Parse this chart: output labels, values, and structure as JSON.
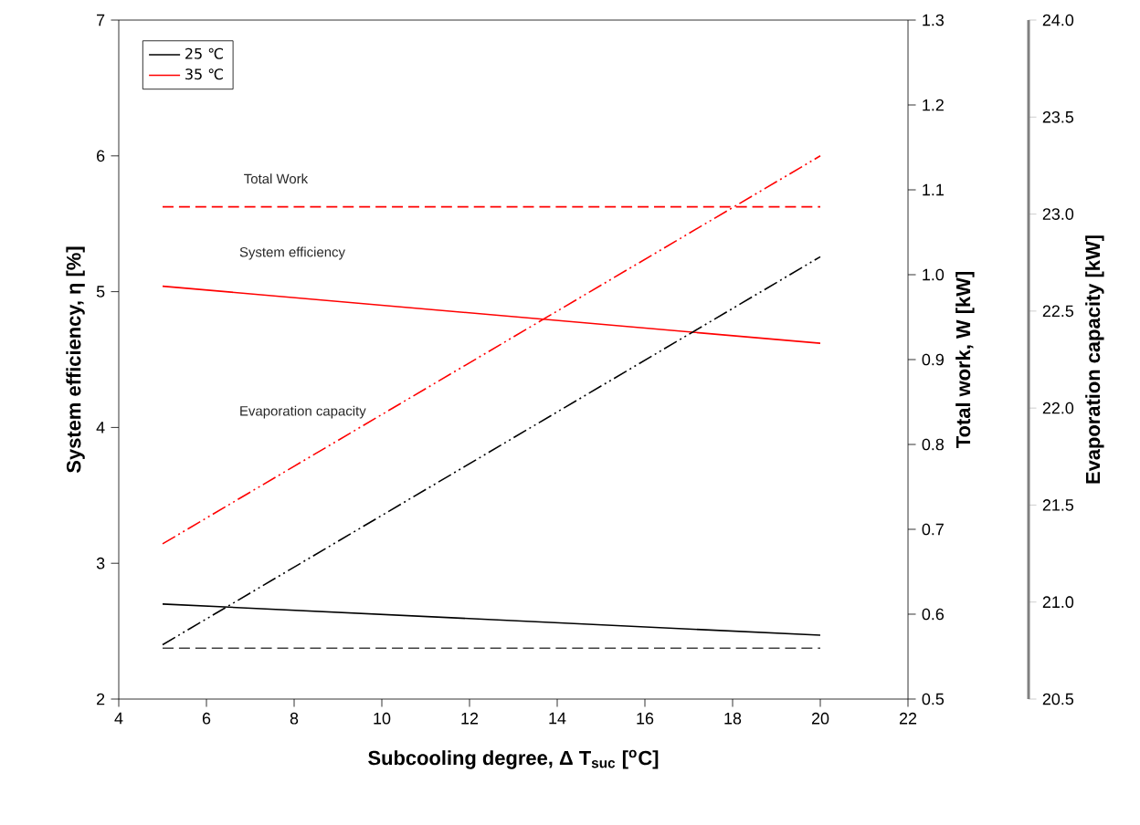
{
  "chart_data": {
    "type": "line",
    "xlabel": "Subcooling degree, Δ T$_{suc}$ [$^{o}$C]",
    "ylabel": "System efficiency, η    [%]",
    "y2label": "Total work, W [kW]",
    "y3label": "Evaporation capacity [kW]",
    "xlim": [
      4,
      22
    ],
    "xticks": [
      4,
      6,
      8,
      10,
      12,
      14,
      16,
      18,
      20,
      22
    ],
    "ylim": [
      2,
      7
    ],
    "yticks": [
      2,
      3,
      4,
      5,
      6,
      7
    ],
    "y2lim": [
      0.5,
      1.3
    ],
    "y2ticks": [
      {
        "value": 0.5,
        "label": "0.5"
      },
      {
        "value": 0.6,
        "label": "0.6"
      },
      {
        "value": 0.7,
        "label": "0.7"
      },
      {
        "value": 0.8,
        "label": "0.8"
      },
      {
        "value": 0.9,
        "label": "0.9"
      },
      {
        "value": 1.0,
        "label": "1.0"
      },
      {
        "value": 1.1,
        "label": "1.1"
      },
      {
        "value": 1.2,
        "label": "1.2"
      },
      {
        "value": 1.3,
        "label": "1.3"
      }
    ],
    "y3lim": [
      20.5,
      24.0
    ],
    "y3ticks": [
      {
        "value": 20.5,
        "label": "20.5"
      },
      {
        "value": 21.0,
        "label": "21.0"
      },
      {
        "value": 21.5,
        "label": "21.5"
      },
      {
        "value": 22.0,
        "label": "22.0"
      },
      {
        "value": 22.5,
        "label": "22.5"
      },
      {
        "value": 23.0,
        "label": "23.0"
      },
      {
        "value": 23.5,
        "label": "23.5"
      },
      {
        "value": 24.0,
        "label": "24.0"
      }
    ],
    "x": [
      5,
      20
    ],
    "grid": false,
    "legend": "top left",
    "marker": "none",
    "series": [
      {
        "name": "25 ℃",
        "color": "#000000",
        "axis": "y",
        "line_style": "solid",
        "values": [
          2.7,
          2.47
        ]
      },
      {
        "name": "35 ℃",
        "color": "#ff0000",
        "axis": "y",
        "line_style": "solid",
        "values": [
          5.04,
          4.62
        ]
      },
      {
        "color": "#404040",
        "axis": "y2",
        "line_style": "dashed",
        "values": [
          0.56,
          0.56
        ]
      },
      {
        "color": "#ff0000",
        "axis": "y2",
        "line_style": "dashed",
        "values": [
          1.08,
          1.08
        ]
      },
      {
        "color": "#000000",
        "axis": "y3",
        "line_style": "dashdotdotted",
        "values": [
          20.78,
          22.78
        ]
      },
      {
        "color": "#ff0000",
        "axis": "y3",
        "line_style": "dashdotdotted",
        "values": [
          21.3,
          23.3
        ]
      }
    ],
    "annotations": [
      "Total Work",
      "System efficiency",
      "Evaporation capacity"
    ]
  }
}
